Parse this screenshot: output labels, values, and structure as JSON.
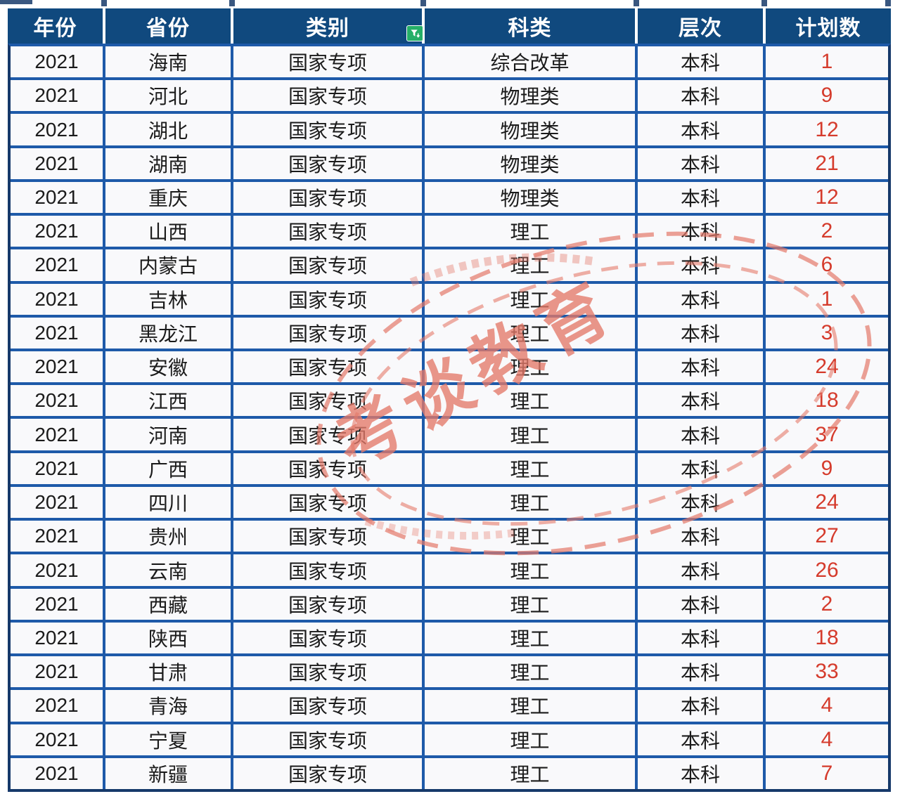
{
  "colors": {
    "header_bg": "#10497E",
    "inner_border": "#1E5AA9",
    "outer_border": "#16396A",
    "cell_bg": "#F9F9FB",
    "text": "#1B1B1B",
    "count_red": "#D53B2C",
    "filter_green": "#25AF68",
    "watermark_red": "#E4796A"
  },
  "table": {
    "headers": [
      "年份",
      "省份",
      "类别",
      "科类",
      "层次",
      "计划数"
    ],
    "rows": [
      [
        "2021",
        "海南",
        "国家专项",
        "综合改革",
        "本科",
        "1"
      ],
      [
        "2021",
        "河北",
        "国家专项",
        "物理类",
        "本科",
        "9"
      ],
      [
        "2021",
        "湖北",
        "国家专项",
        "物理类",
        "本科",
        "12"
      ],
      [
        "2021",
        "湖南",
        "国家专项",
        "物理类",
        "本科",
        "21"
      ],
      [
        "2021",
        "重庆",
        "国家专项",
        "物理类",
        "本科",
        "12"
      ],
      [
        "2021",
        "山西",
        "国家专项",
        "理工",
        "本科",
        "2"
      ],
      [
        "2021",
        "内蒙古",
        "国家专项",
        "理工",
        "本科",
        "6"
      ],
      [
        "2021",
        "吉林",
        "国家专项",
        "理工",
        "本科",
        "1"
      ],
      [
        "2021",
        "黑龙江",
        "国家专项",
        "理工",
        "本科",
        "3"
      ],
      [
        "2021",
        "安徽",
        "国家专项",
        "理工",
        "本科",
        "24"
      ],
      [
        "2021",
        "江西",
        "国家专项",
        "理工",
        "本科",
        "18"
      ],
      [
        "2021",
        "河南",
        "国家专项",
        "理工",
        "本科",
        "37"
      ],
      [
        "2021",
        "广西",
        "国家专项",
        "理工",
        "本科",
        "9"
      ],
      [
        "2021",
        "四川",
        "国家专项",
        "理工",
        "本科",
        "24"
      ],
      [
        "2021",
        "贵州",
        "国家专项",
        "理工",
        "本科",
        "27"
      ],
      [
        "2021",
        "云南",
        "国家专项",
        "理工",
        "本科",
        "26"
      ],
      [
        "2021",
        "西藏",
        "国家专项",
        "理工",
        "本科",
        "2"
      ],
      [
        "2021",
        "陕西",
        "国家专项",
        "理工",
        "本科",
        "18"
      ],
      [
        "2021",
        "甘肃",
        "国家专项",
        "理工",
        "本科",
        "33"
      ],
      [
        "2021",
        "青海",
        "国家专项",
        "理工",
        "本科",
        "4"
      ],
      [
        "2021",
        "宁夏",
        "国家专项",
        "理工",
        "本科",
        "4"
      ],
      [
        "2021",
        "新疆",
        "国家专项",
        "理工",
        "本科",
        "7"
      ]
    ]
  },
  "watermark": {
    "text": "考谈教育"
  }
}
